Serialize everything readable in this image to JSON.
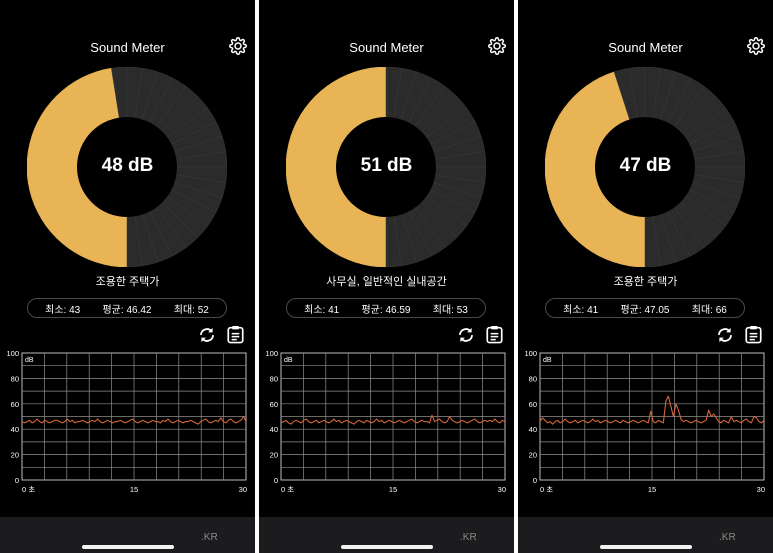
{
  "app": {
    "title": "Sound Meter",
    "domain_text": ".KR"
  },
  "colors": {
    "active": "#E8B455",
    "inactive": "#2b2b2b",
    "trace": "#D2663A",
    "grid": "#8f8f8f"
  },
  "axis": {
    "y_unit": "dB",
    "y_ticks": [
      "100",
      "80",
      "60",
      "40",
      "20",
      "0"
    ],
    "x_ticks": [
      "0 초",
      "15",
      "30"
    ],
    "y_range": [
      0,
      100
    ],
    "x_range": [
      0,
      30
    ]
  },
  "screens": [
    {
      "reading": "48 dB",
      "level": 48,
      "status": "조용한 주택가",
      "stats": {
        "min_label": "최소:",
        "min": "43",
        "avg_label": "평균:",
        "avg": "46.42",
        "max_label": "최대:",
        "max": "52"
      },
      "chart_data": {
        "type": "line",
        "xlabel": "",
        "ylabel": "dB",
        "ylim": [
          0,
          100
        ],
        "xlim": [
          0,
          30
        ],
        "series": [
          {
            "values": [
              46,
              45,
              46,
              47,
              45,
              46,
              48,
              46,
              45,
              47,
              46,
              45,
              46,
              47,
              47,
              46,
              45,
              46,
              48,
              46,
              47,
              45,
              46,
              46,
              47,
              46,
              45,
              46,
              47,
              46,
              48,
              46,
              45,
              46,
              47,
              46,
              45,
              46,
              46,
              47,
              46,
              45,
              46,
              47,
              48,
              46,
              45,
              46,
              47,
              46,
              45,
              46,
              47,
              46,
              46,
              45,
              47,
              46,
              48,
              46,
              45,
              46,
              47,
              46,
              45,
              46,
              46,
              47,
              46,
              45,
              44,
              46,
              47,
              48,
              46,
              45,
              46,
              47,
              46,
              49,
              46,
              45,
              47,
              48,
              46,
              45,
              46,
              47,
              50,
              46
            ]
          }
        ]
      }
    },
    {
      "reading": "51 dB",
      "level": 51,
      "status": "사무실, 일반적인 실내공간",
      "stats": {
        "min_label": "최소:",
        "min": "41",
        "avg_label": "평균:",
        "avg": "46.59",
        "max_label": "최대:",
        "max": "53"
      },
      "chart_data": {
        "type": "line",
        "xlabel": "",
        "ylabel": "dB",
        "ylim": [
          0,
          100
        ],
        "xlim": [
          0,
          30
        ],
        "series": [
          {
            "values": [
              45,
              46,
              47,
              45,
              44,
              46,
              47,
              46,
              45,
              47,
              48,
              46,
              45,
              46,
              47,
              45,
              46,
              47,
              46,
              45,
              46,
              48,
              46,
              47,
              45,
              46,
              47,
              46,
              45,
              44,
              46,
              47,
              46,
              45,
              47,
              46,
              45,
              46,
              48,
              46,
              47,
              45,
              46,
              47,
              46,
              45,
              46,
              47,
              46,
              45,
              46,
              47,
              48,
              46,
              45,
              46,
              47,
              46,
              46,
              45,
              51,
              46,
              47,
              48,
              46,
              45,
              46,
              50,
              47,
              46,
              45,
              46,
              47,
              46,
              45,
              46,
              47,
              48,
              46,
              45,
              46,
              47,
              46,
              47,
              46,
              48,
              46,
              45,
              47,
              46
            ]
          }
        ]
      }
    },
    {
      "reading": "47 dB",
      "level": 47,
      "status": "조용한 주택가",
      "stats": {
        "min_label": "최소:",
        "min": "41",
        "avg_label": "평균:",
        "avg": "47.05",
        "max_label": "최대:",
        "max": "66"
      },
      "chart_data": {
        "type": "line",
        "xlabel": "",
        "ylabel": "dB",
        "ylim": [
          0,
          100
        ],
        "xlim": [
          0,
          30
        ],
        "series": [
          {
            "values": [
              46,
              49,
              47,
              45,
              46,
              44,
              46,
              47,
              45,
              46,
              48,
              46,
              45,
              46,
              47,
              45,
              46,
              47,
              46,
              45,
              46,
              48,
              46,
              47,
              45,
              46,
              47,
              46,
              45,
              46,
              47,
              46,
              45,
              47,
              46,
              45,
              46,
              47,
              46,
              45,
              46,
              47,
              46,
              45,
              54,
              46,
              45,
              47,
              46,
              45,
              62,
              66,
              58,
              50,
              60,
              55,
              48,
              46,
              47,
              46,
              45,
              46,
              47,
              46,
              45,
              46,
              47,
              55,
              50,
              52,
              49,
              46,
              45,
              47,
              46,
              45,
              50,
              46,
              47,
              46,
              45,
              47,
              48,
              46,
              45,
              50,
              49,
              46,
              45,
              47
            ]
          }
        ]
      }
    }
  ]
}
